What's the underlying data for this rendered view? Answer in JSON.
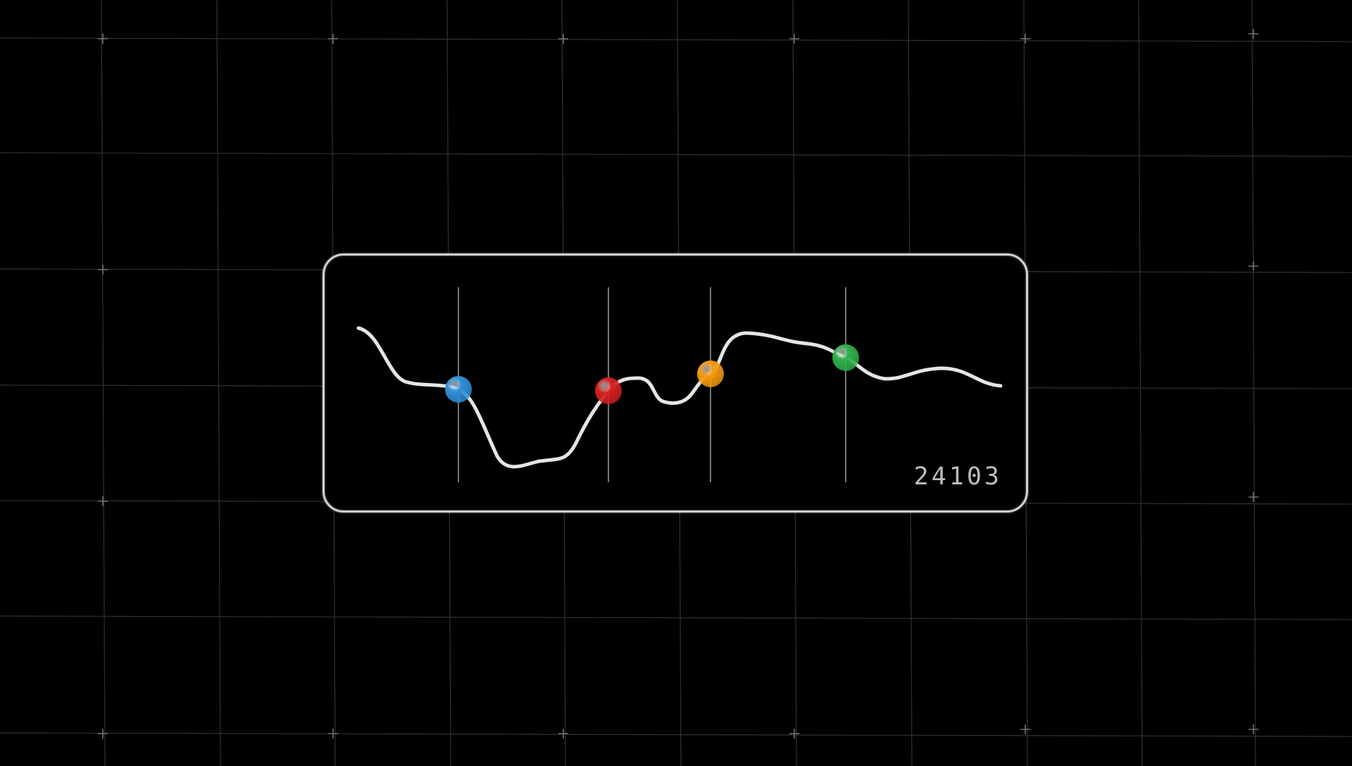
{
  "card": {
    "label": "24103"
  },
  "markers": [
    {
      "name": "blue-marker",
      "color": "#2f8fd8"
    },
    {
      "name": "red-marker",
      "color": "#d42020"
    },
    {
      "name": "orange-marker",
      "color": "#f59a10"
    },
    {
      "name": "green-marker",
      "color": "#2fb04a"
    }
  ],
  "colors": {
    "background": "#000000",
    "grid": "#2e3431",
    "line": "#e4e6e3",
    "card_border": "#cfd3d0"
  }
}
